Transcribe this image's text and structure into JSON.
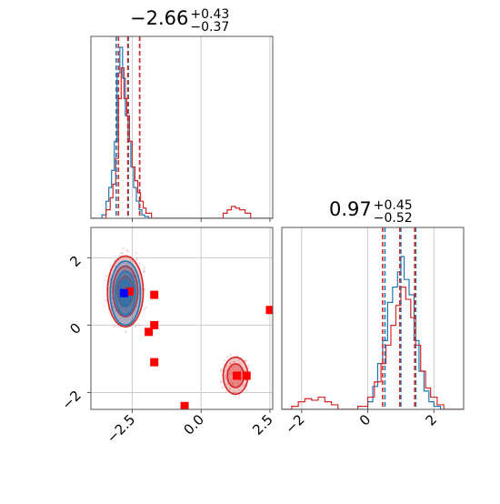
{
  "chart_data": [
    {
      "type": "histogram",
      "panel": "top-left",
      "title": {
        "main": "−2.66",
        "sup": "+0.43",
        "sub": "−0.37"
      },
      "xlim": [
        -4.0,
        2.6
      ],
      "grid": true,
      "vlines": {
        "blue": [
          -3.08,
          -2.64,
          -2.23
        ],
        "red": [
          -3.0,
          -2.66,
          -2.23
        ]
      },
      "series": [
        {
          "color": "#1f77b4",
          "x": [
            -4.0,
            -3.8,
            -3.6,
            -3.45,
            -3.35,
            -3.25,
            -3.15,
            -3.05,
            -2.95,
            -2.85,
            -2.75,
            -2.65,
            -2.55,
            -2.45,
            -2.35,
            -2.25,
            -2.15,
            -2.05,
            -1.9,
            2.6
          ],
          "y": [
            0,
            0,
            0.02,
            0.1,
            0.18,
            0.28,
            0.45,
            0.85,
            1.0,
            0.82,
            0.6,
            0.45,
            0.3,
            0.18,
            0.1,
            0.05,
            0.02,
            0.01,
            0,
            0
          ]
        },
        {
          "color": "#d62728",
          "x": [
            -4.0,
            -3.6,
            -3.45,
            -3.3,
            -3.2,
            -3.1,
            -3.0,
            -2.9,
            -2.8,
            -2.7,
            -2.6,
            -2.5,
            -2.4,
            -2.3,
            -2.2,
            -2.1,
            -2.0,
            -1.8,
            0.6,
            0.8,
            0.95,
            1.1,
            1.25,
            1.4,
            1.6,
            1.8,
            2.6
          ],
          "y": [
            0,
            0,
            0.05,
            0.12,
            0.2,
            0.35,
            0.7,
            0.88,
            0.7,
            0.6,
            0.45,
            0.3,
            0.22,
            0.15,
            0.1,
            0.06,
            0.03,
            0,
            0,
            0.03,
            0.05,
            0.07,
            0.06,
            0.05,
            0.03,
            0,
            0
          ]
        }
      ]
    },
    {
      "type": "scatter",
      "panel": "bottom-left",
      "xlim": [
        -4.0,
        2.6
      ],
      "ylim": [
        -2.5,
        2.9
      ],
      "grid": true,
      "xticks": [
        "−2.5",
        "0.0",
        "2.5"
      ],
      "xtick_values": [
        -2.5,
        0.0,
        2.5
      ],
      "yticks": [
        "−2",
        "0",
        "2"
      ],
      "ytick_values": [
        -2,
        0,
        2
      ],
      "contours": [
        {
          "color": "#d62728",
          "cx": -2.75,
          "cy": 1.0,
          "levels": [
            {
              "rx": 0.65,
              "ry": 1.05
            },
            {
              "rx": 0.45,
              "ry": 0.75
            },
            {
              "rx": 0.28,
              "ry": 0.45
            }
          ]
        },
        {
          "color": "#d62728",
          "cx": 1.25,
          "cy": -1.5,
          "levels": [
            {
              "rx": 0.45,
              "ry": 0.55
            },
            {
              "rx": 0.3,
              "ry": 0.35
            }
          ]
        },
        {
          "color": "#1f77b4",
          "cx": -2.75,
          "cy": 0.95,
          "levels": [
            {
              "rx": 0.55,
              "ry": 0.95
            },
            {
              "rx": 0.36,
              "ry": 0.65
            },
            {
              "rx": 0.2,
              "ry": 0.38
            }
          ]
        }
      ],
      "markers_red": [
        {
          "x": -2.6,
          "y": 1.0
        },
        {
          "x": -1.7,
          "y": 0.9
        },
        {
          "x": -1.7,
          "y": 0.0
        },
        {
          "x": -1.9,
          "y": -0.2
        },
        {
          "x": -1.7,
          "y": -1.1
        },
        {
          "x": -0.6,
          "y": -2.4
        },
        {
          "x": 2.5,
          "y": 0.45
        },
        {
          "x": 1.3,
          "y": -1.5
        },
        {
          "x": 1.65,
          "y": -1.5
        }
      ],
      "markers_blue": [
        {
          "x": -2.8,
          "y": 0.95
        }
      ]
    },
    {
      "type": "histogram",
      "panel": "bottom-right",
      "title": {
        "main": "0.97",
        "sup": "+0.45",
        "sub": "−0.52"
      },
      "xlim": [
        -2.6,
        2.9
      ],
      "grid": true,
      "xticks": [
        "−2",
        "0",
        "2"
      ],
      "xtick_values": [
        -2,
        0,
        2
      ],
      "vlines": {
        "blue": [
          0.52,
          1.0,
          1.45
        ],
        "red": [
          0.45,
          0.97,
          1.42
        ]
      },
      "series": [
        {
          "color": "#1f77b4",
          "x": [
            -2.6,
            -0.2,
            0.0,
            0.15,
            0.3,
            0.45,
            0.6,
            0.75,
            0.9,
            1.0,
            1.1,
            1.25,
            1.4,
            1.55,
            1.7,
            1.85,
            2.0,
            2.2,
            2.9
          ],
          "y": [
            0,
            0,
            0.05,
            0.15,
            0.3,
            0.45,
            0.7,
            0.8,
            0.9,
            1.0,
            0.85,
            0.75,
            0.45,
            0.25,
            0.12,
            0.05,
            0.02,
            0,
            0
          ]
        },
        {
          "color": "#d62728",
          "x": [
            -2.6,
            -2.3,
            -2.1,
            -1.9,
            -1.7,
            -1.5,
            -1.3,
            -1.1,
            -0.9,
            -0.6,
            -0.3,
            0.0,
            0.2,
            0.4,
            0.55,
            0.7,
            0.85,
            1.0,
            1.15,
            1.3,
            1.45,
            1.6,
            1.75,
            1.9,
            2.1,
            2.3,
            2.9
          ],
          "y": [
            0,
            0.02,
            0.05,
            0.07,
            0.06,
            0.08,
            0.05,
            0.03,
            0,
            0,
            0.02,
            0.08,
            0.18,
            0.3,
            0.42,
            0.55,
            0.68,
            0.8,
            0.72,
            0.6,
            0.42,
            0.25,
            0.14,
            0.08,
            0.03,
            0,
            0
          ]
        }
      ]
    }
  ]
}
